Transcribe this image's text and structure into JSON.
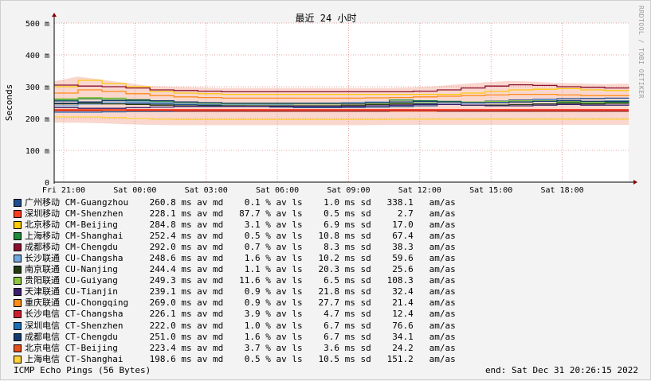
{
  "chart_data": {
    "type": "line",
    "title": "最近 24 小时",
    "ylabel": "Seconds",
    "ylim_ms": [
      0,
      500
    ],
    "yticks": [
      {
        "value": 0,
        "label": "0"
      },
      {
        "value": 100,
        "label": "100 m"
      },
      {
        "value": 200,
        "label": "200 m"
      },
      {
        "value": 300,
        "label": "300 m"
      },
      {
        "value": 400,
        "label": "400 m"
      },
      {
        "value": 500,
        "label": "500 m"
      }
    ],
    "x_range_hours": [
      -0.4,
      23.8
    ],
    "xticks": [
      {
        "hour": 0,
        "label": "Fri 21:00"
      },
      {
        "hour": 3,
        "label": "Sat 00:00"
      },
      {
        "hour": 6,
        "label": "Sat 03:00"
      },
      {
        "hour": 9,
        "label": "Sat 06:00"
      },
      {
        "hour": 12,
        "label": "Sat 09:00"
      },
      {
        "hour": 15,
        "label": "Sat 12:00"
      },
      {
        "hour": 18,
        "label": "Sat 15:00"
      },
      {
        "hour": 21,
        "label": "Sat 18:00"
      }
    ],
    "grid": true,
    "legend_position": "bottom",
    "smoke_color": "#f4b6a6",
    "series": [
      {
        "name": "广州移动 CM-Guangzhou",
        "color": "#1f4e8f",
        "avg": "260.8",
        "loss": "0.1",
        "sd": "1.0",
        "am": "338.1",
        "values": [
          255,
          252,
          250,
          248,
          246,
          244,
          242,
          240,
          238,
          236,
          234,
          234,
          235,
          236,
          238,
          240,
          245,
          250,
          255,
          258,
          260,
          262,
          263,
          264,
          265
        ]
      },
      {
        "name": "深圳移动 CM-Shenzhen",
        "color": "#ff3c1f",
        "avg": "228.1",
        "loss": "87.7",
        "sd": "0.5",
        "am": "2.7",
        "values": [
          228,
          228,
          228,
          228,
          228,
          228,
          228,
          228,
          228,
          228,
          228,
          228,
          228,
          228,
          228,
          228,
          228,
          228,
          228,
          228,
          228,
          228,
          228,
          228,
          228
        ]
      },
      {
        "name": "北京移动 CM-Beijing",
        "color": "#ffc90e",
        "avg": "284.8",
        "loss": "3.1",
        "sd": "6.9",
        "am": "17.0",
        "values": [
          300,
          320,
          310,
          300,
          285,
          280,
          278,
          276,
          276,
          276,
          276,
          276,
          276,
          276,
          276,
          276,
          276,
          280,
          285,
          290,
          292,
          294,
          290,
          288,
          290
        ]
      },
      {
        "name": "上海移动 CM-Shanghai",
        "color": "#1e8a3a",
        "avg": "252.4",
        "loss": "0.5",
        "sd": "10.8",
        "am": "67.4",
        "values": [
          258,
          262,
          260,
          256,
          252,
          249,
          246,
          246,
          246,
          246,
          246,
          246,
          248,
          252,
          258,
          256,
          254,
          252,
          250,
          252,
          254,
          252,
          250,
          251,
          252
        ]
      },
      {
        "name": "成都移动 CM-Chengdu",
        "color": "#8a0f2f",
        "avg": "292.0",
        "loss": "0.7",
        "sd": "8.3",
        "am": "38.3",
        "values": [
          305,
          302,
          300,
          296,
          290,
          288,
          286,
          284,
          284,
          284,
          284,
          284,
          284,
          284,
          284,
          286,
          290,
          296,
          302,
          306,
          304,
          300,
          298,
          296,
          298
        ]
      },
      {
        "name": "长沙联通 CU-Changsha",
        "color": "#72a8e0",
        "avg": "248.6",
        "loss": "1.6",
        "sd": "10.2",
        "am": "59.6",
        "values": [
          240,
          245,
          250,
          252,
          250,
          248,
          246,
          244,
          244,
          244,
          246,
          248,
          250,
          252,
          250,
          248,
          246,
          248,
          252,
          256,
          258,
          256,
          254,
          256,
          258
        ]
      },
      {
        "name": "南京联通 CU-Nanjing",
        "color": "#223a10",
        "avg": "244.4",
        "loss": "1.1",
        "sd": "20.3",
        "am": "25.6",
        "values": [
          246,
          248,
          246,
          244,
          242,
          240,
          240,
          240,
          240,
          240,
          240,
          240,
          242,
          244,
          246,
          246,
          244,
          242,
          242,
          244,
          246,
          248,
          246,
          248,
          250
        ]
      },
      {
        "name": "贵阳联通 CU-Guiyang",
        "color": "#8ec641",
        "avg": "249.3",
        "loss": "11.6",
        "sd": "6.5",
        "am": "108.3",
        "values": [
          262,
          266,
          264,
          260,
          255,
          250,
          248,
          246,
          246,
          246,
          246,
          246,
          247,
          248,
          250,
          252,
          252,
          252,
          254,
          256,
          256,
          254,
          252,
          254,
          256
        ]
      },
      {
        "name": "天津联通 CU-Tianjin",
        "color": "#3a1f6e",
        "avg": "239.1",
        "loss": "0.9",
        "sd": "21.8",
        "am": "32.4",
        "values": [
          234,
          232,
          232,
          234,
          236,
          238,
          238,
          238,
          238,
          238,
          238,
          238,
          238,
          240,
          242,
          244,
          244,
          242,
          240,
          240,
          242,
          244,
          242,
          242,
          244
        ]
      },
      {
        "name": "重庆联通 CU-Chongqing",
        "color": "#ff8c1a",
        "avg": "269.0",
        "loss": "0.9",
        "sd": "27.7",
        "am": "21.4",
        "values": [
          280,
          290,
          285,
          278,
          272,
          268,
          266,
          264,
          264,
          264,
          264,
          264,
          264,
          265,
          266,
          268,
          270,
          272,
          274,
          276,
          276,
          274,
          272,
          272,
          274
        ]
      },
      {
        "name": "长沙电信 CT-Changsha",
        "color": "#cc1f2e",
        "avg": "226.1",
        "loss": "3.9",
        "sd": "4.7",
        "am": "12.4",
        "values": [
          224,
          224,
          225,
          226,
          226,
          226,
          226,
          226,
          226,
          226,
          226,
          226,
          226,
          226,
          226,
          226,
          226,
          226,
          226,
          226,
          226,
          226,
          226,
          226,
          226
        ]
      },
      {
        "name": "深圳电信 CT-Shenzhen",
        "color": "#1f6fb4",
        "avg": "222.0",
        "loss": "1.0",
        "sd": "6.7",
        "am": "76.6",
        "values": [
          220,
          220,
          221,
          222,
          222,
          222,
          222,
          222,
          222,
          222,
          222,
          222,
          222,
          222,
          223,
          223,
          222,
          222,
          222,
          222,
          222,
          222,
          222,
          222,
          222
        ]
      },
      {
        "name": "成都电信 CT-Chengdu",
        "color": "#123a6e",
        "avg": "251.0",
        "loss": "1.6",
        "sd": "6.7",
        "am": "34.1",
        "values": [
          248,
          252,
          256,
          258,
          256,
          252,
          250,
          248,
          248,
          248,
          248,
          248,
          248,
          250,
          252,
          254,
          252,
          250,
          250,
          252,
          254,
          256,
          254,
          254,
          256
        ]
      },
      {
        "name": "北京电信 CT-Beijing",
        "color": "#e8501f",
        "avg": "223.4",
        "loss": "3.7",
        "sd": "3.6",
        "am": "24.2",
        "values": [
          226,
          226,
          225,
          224,
          224,
          223,
          223,
          223,
          223,
          223,
          223,
          223,
          223,
          223,
          223,
          223,
          223,
          223,
          223,
          223,
          223,
          223,
          223,
          223,
          223
        ]
      },
      {
        "name": "上海电信 CT-Shanghai",
        "color": "#ffd23a",
        "avg": "198.6",
        "loss": "0.5",
        "sd": "10.5",
        "am": "151.2",
        "values": [
          205,
          205,
          203,
          200,
          198,
          197,
          197,
          197,
          197,
          197,
          197,
          197,
          197,
          197,
          198,
          198,
          198,
          198,
          198,
          198,
          198,
          198,
          198,
          198,
          198
        ]
      }
    ]
  },
  "legend": {
    "unit_avg": "ms av md",
    "unit_loss": "% av ls",
    "unit_sd": "ms sd",
    "unit_am": "am/as"
  },
  "footer": {
    "left": "ICMP Echo Pings (56 Bytes)",
    "right": "end: Sat Dec 31 20:26:15 2022"
  },
  "credit": "RRDTOOL / TOBI OETIKER"
}
